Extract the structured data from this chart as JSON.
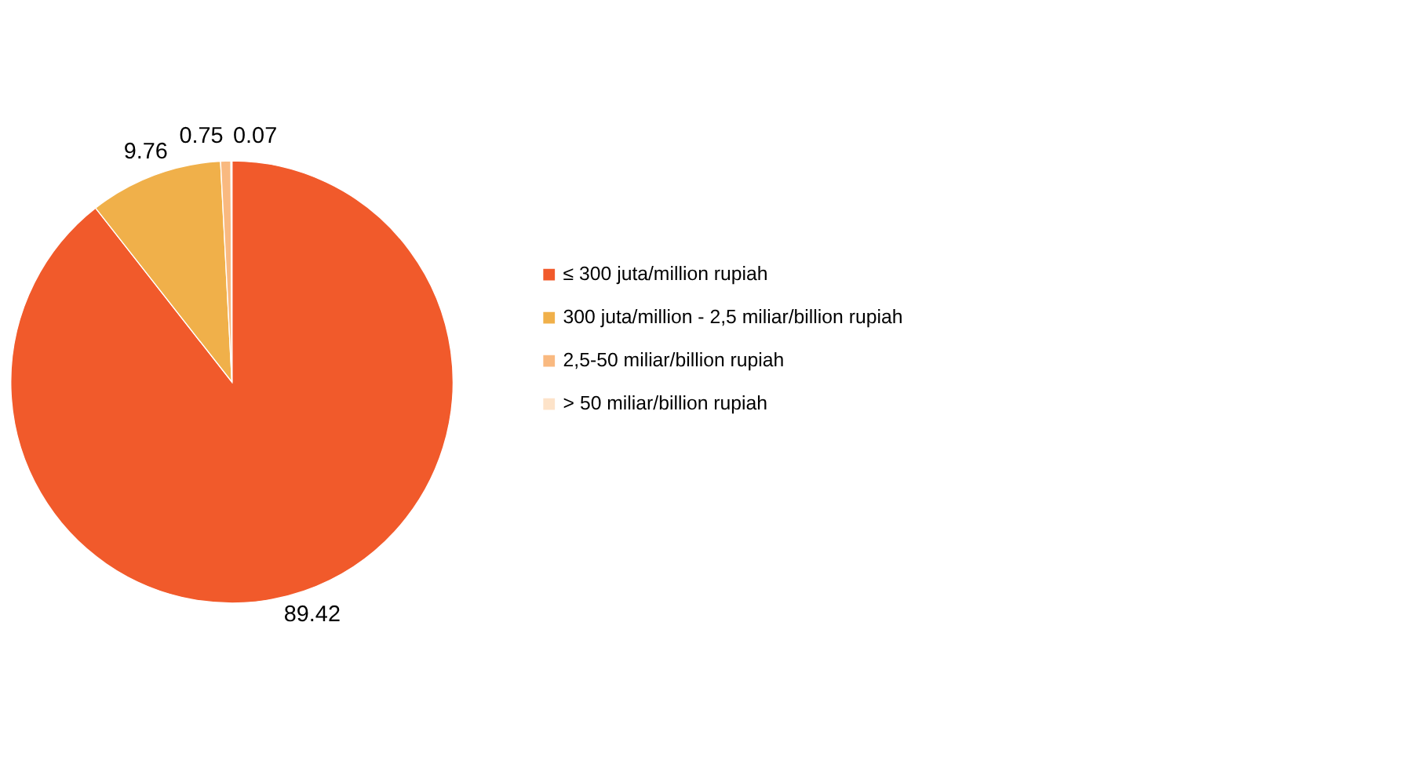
{
  "chart_data": {
    "type": "pie",
    "categories": [
      "≤ 300 juta/million rupiah",
      "300 juta/million  - 2,5 miliar/billion rupiah",
      "2,5-50 miliar/billion rupiah",
      "> 50 miliar/billion rupiah"
    ],
    "values": [
      89.42,
      9.76,
      0.75,
      0.07
    ],
    "colors": [
      "#f15a2b",
      "#f0b04a",
      "#f9b980",
      "#fde3c9"
    ],
    "data_labels": true,
    "legend": "right"
  }
}
